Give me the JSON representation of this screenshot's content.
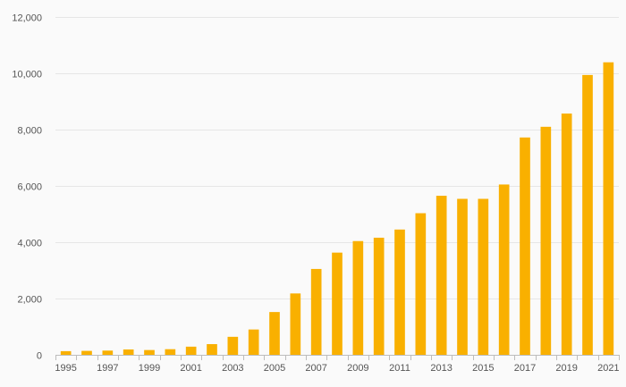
{
  "chart_data": {
    "type": "bar",
    "title": "",
    "xlabel": "",
    "ylabel": "",
    "categories": [
      "1995",
      "1996",
      "1997",
      "1998",
      "1999",
      "2000",
      "2001",
      "2002",
      "2003",
      "2004",
      "2005",
      "2006",
      "2007",
      "2008",
      "2009",
      "2010",
      "2011",
      "2012",
      "2013",
      "2014",
      "2015",
      "2016",
      "2017",
      "2018",
      "2019",
      "2020",
      "2021"
    ],
    "x_tick_labels": [
      "1995",
      "1997",
      "1999",
      "2001",
      "2003",
      "2005",
      "2007",
      "2009",
      "2011",
      "2013",
      "2015",
      "2017",
      "2019",
      "2021"
    ],
    "values": [
      130,
      140,
      150,
      190,
      170,
      200,
      290,
      380,
      640,
      900,
      1520,
      2180,
      3050,
      3630,
      4040,
      4160,
      4450,
      5030,
      5650,
      5540,
      5540,
      6050,
      7720,
      8100,
      8570,
      9940,
      10390
    ],
    "ylim": [
      0,
      12000
    ],
    "y_ticks": [
      0,
      2000,
      4000,
      6000,
      8000,
      10000,
      12000
    ],
    "y_tick_labels": [
      "0",
      "2,000",
      "4,000",
      "6,000",
      "8,000",
      "10,000",
      "12,000"
    ],
    "grid": true,
    "legend": "none",
    "colors": {
      "bar": "#f9b000",
      "background": "#fafafa",
      "grid": "#e6e6e6"
    }
  }
}
